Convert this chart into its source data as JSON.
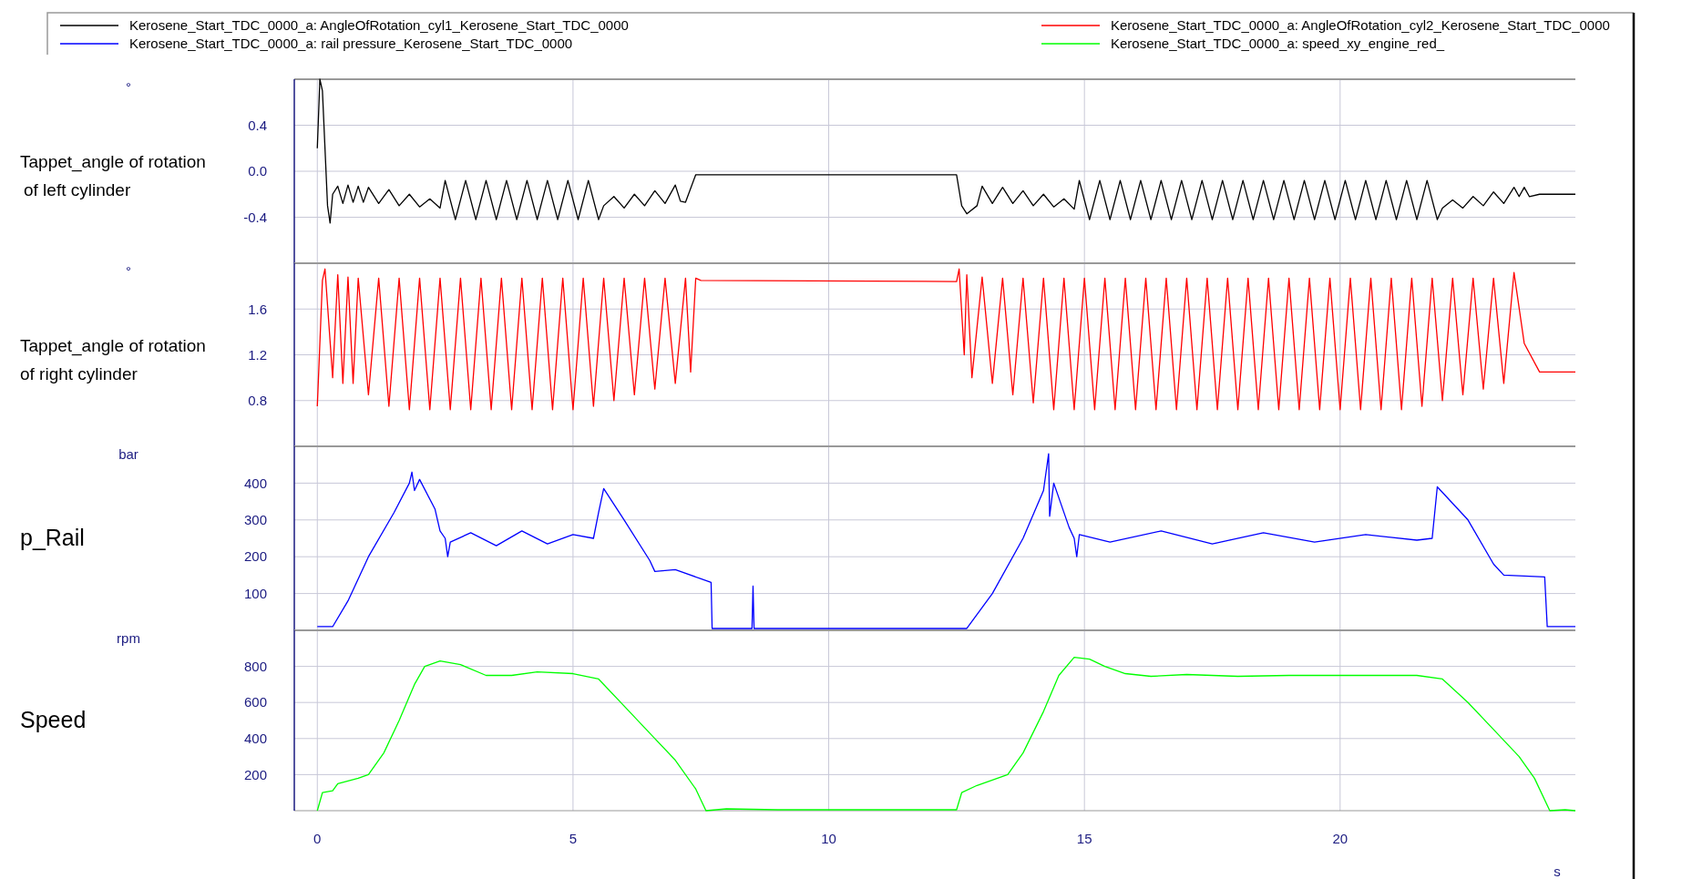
{
  "chart_data": [
    {
      "type": "line",
      "ylabel": "Tappet_angle of rotation of left cylinder",
      "annotations": [
        "°"
      ],
      "legend": "top",
      "tick_labels": "y",
      "grid": true,
      "xlim": [
        -0.45,
        24.6
      ],
      "xticks": [
        0,
        5,
        10,
        15,
        20
      ],
      "ylim": [
        -0.8,
        0.8
      ],
      "yticks": [
        {
          "value": -0.4,
          "label": "-0.4"
        },
        {
          "value": 0,
          "label": "0.0"
        },
        {
          "value": 0.4,
          "label": "0.4"
        }
      ],
      "series": [
        {
          "name": "Kerosene_Start_TDC_0000_a: AngleOfRotation_cyl1_Kerosene_Start_TDC_0000",
          "color": "#000000",
          "x": [
            0,
            0.05,
            0.1,
            0.2,
            0.25,
            0.3,
            0.4,
            0.5,
            0.6,
            0.7,
            0.8,
            0.9,
            1.0,
            1.2,
            1.4,
            1.6,
            1.8,
            2.0,
            2.2,
            2.4,
            2.5,
            2.7,
            2.9,
            3.1,
            3.3,
            3.5,
            3.7,
            3.9,
            4.1,
            4.3,
            4.5,
            4.7,
            4.9,
            5.1,
            5.3,
            5.5,
            5.6,
            5.8,
            6.0,
            6.2,
            6.4,
            6.6,
            6.8,
            7.0,
            7.1,
            7.2,
            7.4,
            12.5,
            12.6,
            12.7,
            12.9,
            13.0,
            13.2,
            13.4,
            13.6,
            13.8,
            14.0,
            14.2,
            14.4,
            14.6,
            14.8,
            14.9,
            15.1,
            15.3,
            15.5,
            15.7,
            15.9,
            16.1,
            16.3,
            16.5,
            16.7,
            16.9,
            17.1,
            17.3,
            17.5,
            17.7,
            17.9,
            18.1,
            18.3,
            18.5,
            18.7,
            18.9,
            19.1,
            19.3,
            19.5,
            19.7,
            19.9,
            20.1,
            20.3,
            20.5,
            20.7,
            20.9,
            21.1,
            21.3,
            21.5,
            21.7,
            21.9,
            22.0,
            22.2,
            22.4,
            22.6,
            22.8,
            23.0,
            23.2,
            23.4,
            23.5,
            23.6,
            23.7,
            23.9,
            24.6
          ],
          "values": [
            0.2,
            0.8,
            0.7,
            -0.3,
            -0.45,
            -0.2,
            -0.13,
            -0.28,
            -0.12,
            -0.27,
            -0.13,
            -0.27,
            -0.14,
            -0.28,
            -0.16,
            -0.3,
            -0.2,
            -0.31,
            -0.24,
            -0.32,
            -0.08,
            -0.42,
            -0.08,
            -0.42,
            -0.08,
            -0.42,
            -0.08,
            -0.42,
            -0.08,
            -0.42,
            -0.08,
            -0.42,
            -0.08,
            -0.42,
            -0.08,
            -0.42,
            -0.3,
            -0.22,
            -0.32,
            -0.2,
            -0.3,
            -0.17,
            -0.28,
            -0.12,
            -0.26,
            -0.27,
            -0.03,
            -0.03,
            -0.3,
            -0.37,
            -0.3,
            -0.13,
            -0.28,
            -0.14,
            -0.28,
            -0.17,
            -0.3,
            -0.2,
            -0.31,
            -0.24,
            -0.33,
            -0.08,
            -0.42,
            -0.08,
            -0.42,
            -0.08,
            -0.42,
            -0.08,
            -0.42,
            -0.08,
            -0.42,
            -0.08,
            -0.42,
            -0.08,
            -0.42,
            -0.08,
            -0.42,
            -0.08,
            -0.42,
            -0.08,
            -0.42,
            -0.08,
            -0.42,
            -0.08,
            -0.42,
            -0.08,
            -0.42,
            -0.08,
            -0.42,
            -0.08,
            -0.42,
            -0.08,
            -0.42,
            -0.08,
            -0.42,
            -0.08,
            -0.42,
            -0.32,
            -0.25,
            -0.32,
            -0.22,
            -0.3,
            -0.18,
            -0.28,
            -0.14,
            -0.22,
            -0.14,
            -0.22,
            -0.2,
            -0.2
          ]
        }
      ]
    },
    {
      "type": "line",
      "ylabel": "Tappet_angle of rotation of right cylinder",
      "annotations": [
        "°"
      ],
      "legend": "top",
      "tick_labels": "y",
      "grid": true,
      "xlim": [
        -0.45,
        24.6
      ],
      "xticks": [
        0,
        5,
        10,
        15,
        20
      ],
      "ylim": [
        0.4,
        2.0
      ],
      "yticks": [
        0.8,
        1.2,
        1.6
      ],
      "series": [
        {
          "name": "Kerosene_Start_TDC_0000_a: AngleOfRotation_cyl2_Kerosene_Start_TDC_0000",
          "color": "#ff0000",
          "x": [
            0,
            0.1,
            0.15,
            0.3,
            0.4,
            0.5,
            0.6,
            0.7,
            0.8,
            1.0,
            1.2,
            1.4,
            1.6,
            1.8,
            2.0,
            2.2,
            2.4,
            2.6,
            2.8,
            3.0,
            3.2,
            3.4,
            3.6,
            3.8,
            4.0,
            4.2,
            4.4,
            4.6,
            4.8,
            5.0,
            5.2,
            5.4,
            5.6,
            5.8,
            6.0,
            6.2,
            6.4,
            6.6,
            6.8,
            7.0,
            7.2,
            7.3,
            7.4,
            7.5,
            12.5,
            12.55,
            12.65,
            12.7,
            12.8,
            13.0,
            13.2,
            13.4,
            13.6,
            13.8,
            14.0,
            14.2,
            14.4,
            14.6,
            14.8,
            15.0,
            15.2,
            15.4,
            15.6,
            15.8,
            16.0,
            16.2,
            16.4,
            16.6,
            16.8,
            17.0,
            17.2,
            17.4,
            17.6,
            17.8,
            18.0,
            18.2,
            18.4,
            18.6,
            18.8,
            19.0,
            19.2,
            19.4,
            19.6,
            19.8,
            20.0,
            20.2,
            20.4,
            20.6,
            20.8,
            21.0,
            21.2,
            21.4,
            21.6,
            21.8,
            22.0,
            22.2,
            22.4,
            22.6,
            22.8,
            23.0,
            23.2,
            23.4,
            23.6,
            23.9,
            24.6
          ],
          "values": [
            0.75,
            1.85,
            1.95,
            1.0,
            1.9,
            0.95,
            1.88,
            0.95,
            1.87,
            0.85,
            1.87,
            0.75,
            1.87,
            0.72,
            1.87,
            0.72,
            1.87,
            0.72,
            1.87,
            0.72,
            1.87,
            0.72,
            1.87,
            0.72,
            1.87,
            0.72,
            1.87,
            0.72,
            1.87,
            0.72,
            1.87,
            0.75,
            1.87,
            0.8,
            1.87,
            0.85,
            1.87,
            0.9,
            1.87,
            0.95,
            1.87,
            1.05,
            1.87,
            1.85,
            1.84,
            1.95,
            1.2,
            1.9,
            1.0,
            1.88,
            0.95,
            1.87,
            0.85,
            1.87,
            0.78,
            1.87,
            0.72,
            1.87,
            0.72,
            1.87,
            0.72,
            1.87,
            0.72,
            1.87,
            0.72,
            1.87,
            0.72,
            1.87,
            0.72,
            1.87,
            0.72,
            1.87,
            0.72,
            1.87,
            0.72,
            1.87,
            0.72,
            1.87,
            0.72,
            1.87,
            0.72,
            1.87,
            0.72,
            1.87,
            0.72,
            1.87,
            0.72,
            1.87,
            0.72,
            1.87,
            0.72,
            1.87,
            0.75,
            1.87,
            0.8,
            1.87,
            0.85,
            1.87,
            0.9,
            1.87,
            0.95,
            1.92,
            1.3,
            1.05,
            1.05
          ]
        }
      ]
    },
    {
      "type": "line",
      "ylabel": "p_Rail",
      "annotations": [
        "bar"
      ],
      "legend": "top",
      "tick_labels": "y",
      "grid": true,
      "xlim": [
        -0.45,
        24.6
      ],
      "xticks": [
        0,
        5,
        10,
        15,
        20
      ],
      "ylim": [
        0,
        500
      ],
      "yticks": [
        100,
        200,
        300,
        400
      ],
      "series": [
        {
          "name": "Kerosene_Start_TDC_0000_a: rail pressure_Kerosene_Start_TDC_0000",
          "color": "#0000ff",
          "x": [
            0,
            0.3,
            0.6,
            1.0,
            1.5,
            1.8,
            1.85,
            1.9,
            2.0,
            2.3,
            2.4,
            2.5,
            2.55,
            2.6,
            3.0,
            3.5,
            4.0,
            4.5,
            5.0,
            5.4,
            5.5,
            5.6,
            6.0,
            6.5,
            6.6,
            7.0,
            7.5,
            7.7,
            7.72,
            8.5,
            8.52,
            8.54,
            12.7,
            13.2,
            13.8,
            14.2,
            14.3,
            14.32,
            14.4,
            14.7,
            14.8,
            14.85,
            14.9,
            15.5,
            16.5,
            17.5,
            18.5,
            19.5,
            20.5,
            21.5,
            21.8,
            21.9,
            22.5,
            23.0,
            23.2,
            24.0,
            24.05,
            24.6
          ],
          "values": [
            10,
            10,
            80,
            200,
            320,
            400,
            430,
            380,
            410,
            330,
            270,
            250,
            200,
            240,
            265,
            230,
            270,
            235,
            260,
            250,
            320,
            385,
            300,
            190,
            160,
            165,
            140,
            130,
            5,
            5,
            120,
            5,
            5,
            100,
            250,
            380,
            480,
            310,
            400,
            280,
            250,
            200,
            260,
            240,
            270,
            235,
            265,
            240,
            260,
            245,
            250,
            390,
            300,
            180,
            150,
            145,
            10,
            10
          ]
        }
      ]
    },
    {
      "type": "line",
      "ylabel": "Speed",
      "xlabel": "s",
      "annotations": [
        "rpm"
      ],
      "legend": "top",
      "grid": true,
      "xlim": [
        -0.45,
        24.6
      ],
      "xticks": [
        0,
        5,
        10,
        15,
        20
      ],
      "ylim": [
        0,
        1000
      ],
      "yticks": [
        200,
        400,
        600,
        800
      ],
      "series": [
        {
          "name": "Kerosene_Start_TDC_0000_a: speed_xy_engine_red_",
          "color": "#00ff00",
          "x": [
            0,
            0.1,
            0.3,
            0.4,
            0.8,
            1.0,
            1.3,
            1.6,
            1.9,
            2.1,
            2.4,
            2.8,
            3.3,
            3.8,
            4.3,
            5.0,
            5.5,
            6.0,
            6.5,
            7.0,
            7.4,
            7.6,
            8.0,
            9.0,
            12.5,
            12.6,
            12.9,
            13.0,
            13.5,
            13.8,
            14.2,
            14.5,
            14.8,
            15.1,
            15.4,
            15.8,
            16.3,
            17.0,
            18.0,
            19.0,
            20.0,
            21.5,
            22.0,
            22.5,
            23.0,
            23.5,
            23.8,
            24.1,
            24.4,
            24.6
          ],
          "values": [
            0,
            100,
            110,
            150,
            180,
            200,
            320,
            500,
            700,
            800,
            830,
            810,
            750,
            750,
            770,
            760,
            730,
            580,
            430,
            280,
            120,
            0,
            10,
            5,
            5,
            100,
            140,
            150,
            200,
            320,
            550,
            750,
            850,
            840,
            800,
            760,
            745,
            755,
            745,
            750,
            750,
            750,
            730,
            600,
            450,
            300,
            180,
            0,
            5,
            0
          ]
        }
      ]
    }
  ]
}
